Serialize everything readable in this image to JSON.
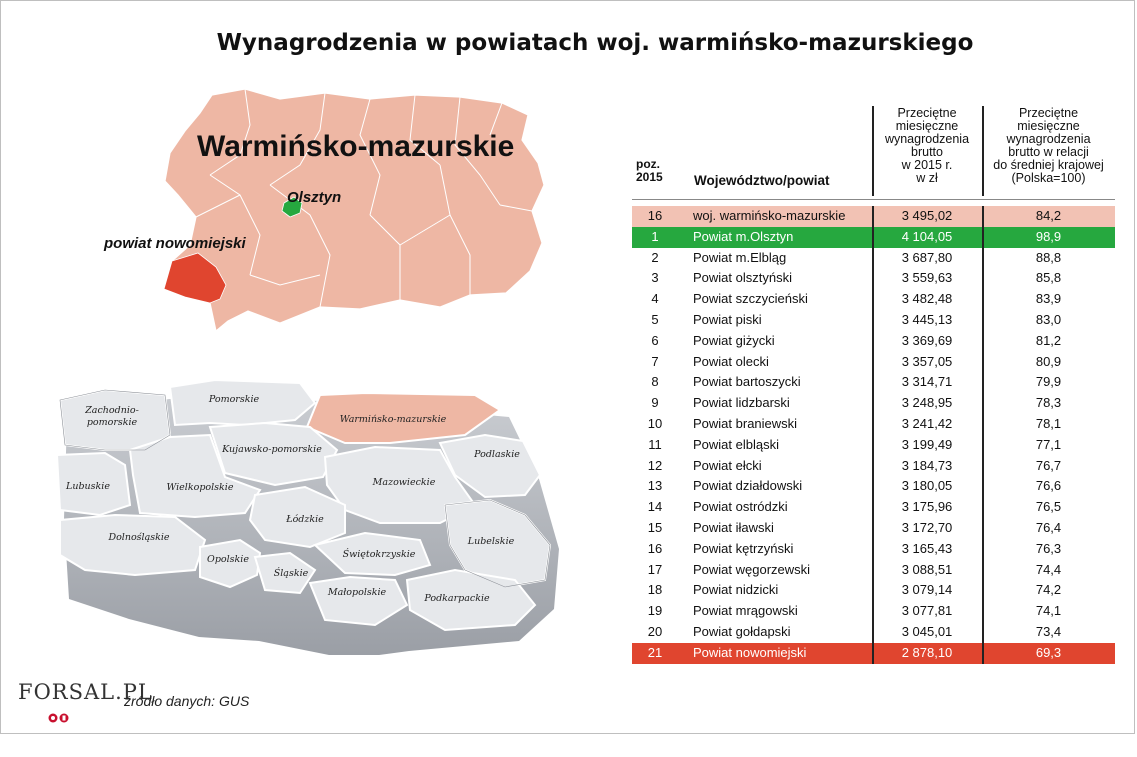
{
  "title": "Wynagrodzenia w powiatach woj. warmińsko-mazurskiego",
  "map": {
    "region_name": "Warmińsko-mazurskie",
    "city_label": "Olsztyn",
    "powiat_label": "powiat nowomiejski",
    "voivodeships": [
      "Zachodnio-\npomorskie",
      "Pomorskie",
      "Warmińsko-mazurskie",
      "Kujawsko-pomorskie",
      "Podlaskie",
      "Lubuskie",
      "Wielkopolskie",
      "Mazowieckie",
      "Łódzkie",
      "Dolnośląskie",
      "Lubelskie",
      "Opolskie",
      "Świętokrzyskie",
      "Śląskie",
      "Małopolskie",
      "Podkarpackie"
    ]
  },
  "table": {
    "headers": {
      "pos": "poz.\n2015",
      "name": "Województwo/powiat",
      "value": "Przeciętne\nmiesięczne\nwynagrodzenia\nbrutto\nw 2015 r.\nw zł",
      "relative": "Przeciętne\nmiesięczne\nwynagrodzenia\nbrutto w relacji\ndo średniej krajowej\n(Polska=100)"
    },
    "rows": [
      {
        "pos": "16",
        "name": "woj. warmińsko-mazurskie",
        "value": "3 495,02",
        "rel": "84,2",
        "hl": "pink"
      },
      {
        "pos": "1",
        "name": "Powiat m.Olsztyn",
        "value": "4 104,05",
        "rel": "98,9",
        "hl": "green"
      },
      {
        "pos": "2",
        "name": "Powiat m.Elbląg",
        "value": "3 687,80",
        "rel": "88,8",
        "hl": ""
      },
      {
        "pos": "3",
        "name": "Powiat olsztyński",
        "value": "3 559,63",
        "rel": "85,8",
        "hl": ""
      },
      {
        "pos": "4",
        "name": "Powiat szczycieński",
        "value": "3 482,48",
        "rel": "83,9",
        "hl": ""
      },
      {
        "pos": "5",
        "name": "Powiat piski",
        "value": "3 445,13",
        "rel": "83,0",
        "hl": ""
      },
      {
        "pos": "6",
        "name": "Powiat giżycki",
        "value": "3 369,69",
        "rel": "81,2",
        "hl": ""
      },
      {
        "pos": "7",
        "name": "Powiat olecki",
        "value": "3 357,05",
        "rel": "80,9",
        "hl": ""
      },
      {
        "pos": "8",
        "name": "Powiat bartoszycki",
        "value": "3 314,71",
        "rel": "79,9",
        "hl": ""
      },
      {
        "pos": "9",
        "name": "Powiat lidzbarski",
        "value": "3 248,95",
        "rel": "78,3",
        "hl": ""
      },
      {
        "pos": "10",
        "name": "Powiat braniewski",
        "value": "3 241,42",
        "rel": "78,1",
        "hl": ""
      },
      {
        "pos": "11",
        "name": "Powiat elbląski",
        "value": "3 199,49",
        "rel": "77,1",
        "hl": ""
      },
      {
        "pos": "12",
        "name": "Powiat ełcki",
        "value": "3 184,73",
        "rel": "76,7",
        "hl": ""
      },
      {
        "pos": "13",
        "name": "Powiat działdowski",
        "value": "3 180,05",
        "rel": "76,6",
        "hl": ""
      },
      {
        "pos": "14",
        "name": "Powiat ostródzki",
        "value": "3 175,96",
        "rel": "76,5",
        "hl": ""
      },
      {
        "pos": "15",
        "name": "Powiat iławski",
        "value": "3 172,70",
        "rel": "76,4",
        "hl": ""
      },
      {
        "pos": "16",
        "name": "Powiat kętrzyński",
        "value": "3 165,43",
        "rel": "76,3",
        "hl": ""
      },
      {
        "pos": "17",
        "name": "Powiat węgorzewski",
        "value": "3 088,51",
        "rel": "74,4",
        "hl": ""
      },
      {
        "pos": "18",
        "name": "Powiat nidzicki",
        "value": "3 079,14",
        "rel": "74,2",
        "hl": ""
      },
      {
        "pos": "19",
        "name": "Powiat mrągowski",
        "value": "3 077,81",
        "rel": "74,1",
        "hl": ""
      },
      {
        "pos": "20",
        "name": "Powiat gołdapski",
        "value": "3 045,01",
        "rel": "73,4",
        "hl": ""
      },
      {
        "pos": "21",
        "name": "Powiat nowomiejski",
        "value": "2 878,10",
        "rel": "69,3",
        "hl": "red"
      }
    ]
  },
  "footer": {
    "logo": "FORSAL.PL",
    "source": "źródło danych: GUS"
  },
  "colors": {
    "pink": "#f2c2b4",
    "green": "#26a83f",
    "red": "#e0452f",
    "region_fill": "#eeb7a4"
  }
}
